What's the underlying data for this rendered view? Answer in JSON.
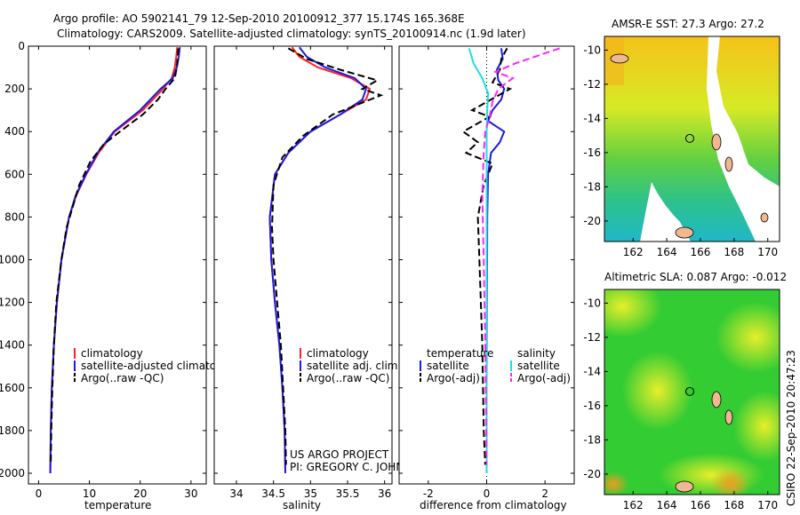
{
  "header": {
    "line1": "Argo profile: AO 5902141_79 12-Sep-2010 20100912_377 15.174S 165.368E",
    "line2": "Climatology: CARS2009. Satellite-adjusted climatology: synTS_20100914.nc (1.9d later)"
  },
  "colors": {
    "climatology": "#ff2020",
    "satellite": "#1a1ae6",
    "argo": "#000000",
    "salinity_satellite": "#18e0e0",
    "salinity_argo": "#ff22ff",
    "map_green": "#33cc33",
    "map_yellow": "#ddee22",
    "map_orange": "#f5b020",
    "map_cyan": "#20c8c8",
    "land": "#f0b890"
  },
  "credit": {
    "line1": "US ARGO PROJECT",
    "line2": "PI: GREGORY C. JOHNSON"
  },
  "footer": {
    "csiro_stamp": "CSIRO 22-Sep-2010 20:47:23"
  },
  "chart_data": [
    {
      "type": "line",
      "panel": "temperature",
      "xlabel": "temperature",
      "ylabel": "",
      "xlim": [
        -2,
        33
      ],
      "ylim": [
        2050,
        0
      ],
      "y_reversed": true,
      "xticks": [
        "0",
        "10",
        "20",
        "30"
      ],
      "xtick_values": [
        0,
        10,
        20,
        30
      ],
      "yticks": [
        "0",
        "200",
        "400",
        "600",
        "800",
        "1000",
        "1200",
        "1400",
        "1600",
        "1800",
        "2000"
      ],
      "ytick_values": [
        0,
        200,
        400,
        600,
        800,
        1000,
        1200,
        1400,
        1600,
        1800,
        2000
      ],
      "legend": [
        "climatology",
        "satellite-adjusted climatology",
        "Argo(..raw -QC)"
      ],
      "legend_position": "lower-center",
      "series": [
        {
          "name": "climatology",
          "style": "solid",
          "x": [
            27.3,
            27.1,
            26.8,
            26.2,
            24.5,
            20.5,
            15.0,
            11.8,
            9.4,
            7.4,
            6.0,
            4.5,
            3.6,
            3.0,
            2.6,
            2.4,
            2.3
          ],
          "y": [
            5,
            50,
            100,
            150,
            200,
            300,
            400,
            500,
            600,
            700,
            800,
            1000,
            1200,
            1400,
            1600,
            1800,
            2000
          ]
        },
        {
          "name": "satellite-adjusted climatology",
          "style": "solid",
          "x": [
            27.8,
            27.6,
            27.2,
            26.4,
            24.0,
            20.0,
            14.8,
            11.6,
            9.3,
            7.3,
            6.0,
            4.5,
            3.6,
            3.0,
            2.6,
            2.4,
            2.3
          ],
          "y": [
            5,
            50,
            100,
            150,
            200,
            300,
            400,
            500,
            600,
            700,
            800,
            1000,
            1200,
            1400,
            1600,
            1800,
            2000
          ]
        },
        {
          "name": "Argo(..raw -QC)",
          "style": "dash",
          "x": [
            27.5,
            27.4,
            27.2,
            26.8,
            25.0,
            23.5,
            20.5,
            16.0,
            12.8,
            10.2,
            8.0,
            5.5,
            4.5,
            3.5,
            3.0,
            2.7,
            2.5,
            2.4
          ],
          "y": [
            10,
            50,
            100,
            150,
            200,
            250,
            320,
            400,
            460,
            540,
            650,
            850,
            1000,
            1200,
            1400,
            1600,
            1800,
            1960
          ]
        }
      ]
    },
    {
      "type": "line",
      "panel": "salinity",
      "xlabel": "salinity",
      "xlim": [
        33.7,
        36.1
      ],
      "ylim": [
        2050,
        0
      ],
      "y_reversed": true,
      "xticks": [
        "34",
        "34.5",
        "35",
        "35.5",
        "36"
      ],
      "xtick_values": [
        34,
        34.5,
        35,
        35.5,
        36
      ],
      "legend": [
        "climatology",
        "satellite adj. clim.",
        "Argo(..raw -QC)"
      ],
      "legend_position": "lower-center",
      "series": [
        {
          "name": "climatology",
          "style": "solid",
          "x": [
            34.75,
            34.85,
            35.1,
            35.55,
            35.8,
            35.75,
            35.4,
            35.0,
            34.7,
            34.52,
            34.45,
            34.47,
            34.52,
            34.58,
            34.62,
            34.65,
            34.66
          ],
          "y": [
            5,
            50,
            100,
            150,
            200,
            250,
            320,
            400,
            500,
            600,
            800,
            1000,
            1200,
            1400,
            1600,
            1800,
            2000
          ]
        },
        {
          "name": "satellite adj. clim.",
          "style": "solid",
          "x": [
            34.85,
            34.95,
            35.2,
            35.6,
            35.75,
            35.7,
            35.4,
            35.0,
            34.7,
            34.52,
            34.45,
            34.47,
            34.52,
            34.58,
            34.62,
            34.65,
            34.66
          ],
          "y": [
            5,
            50,
            100,
            150,
            200,
            250,
            320,
            400,
            500,
            600,
            800,
            1000,
            1200,
            1400,
            1600,
            1800,
            2000
          ]
        },
        {
          "name": "Argo(..raw -QC)",
          "style": "dash",
          "x": [
            34.7,
            34.95,
            35.4,
            35.9,
            35.7,
            35.95,
            35.3,
            34.9,
            34.62,
            34.5,
            34.48,
            34.5,
            34.55,
            34.6,
            34.63,
            34.66,
            34.67
          ],
          "y": [
            10,
            60,
            110,
            160,
            200,
            230,
            320,
            420,
            520,
            650,
            850,
            1000,
            1200,
            1400,
            1600,
            1800,
            1960
          ]
        }
      ]
    },
    {
      "type": "line",
      "panel": "difference",
      "xlabel": "difference from climatology",
      "xlim": [
        -3,
        3
      ],
      "ylim": [
        2050,
        0
      ],
      "y_reversed": true,
      "xticks": [
        "-2",
        "0",
        "2"
      ],
      "xtick_values": [
        -2,
        0,
        2
      ],
      "legend_temperature": {
        "title": "temperature",
        "items": [
          "satellite",
          "Argo(-adj)"
        ]
      },
      "legend_salinity": {
        "title": "salinity",
        "items": [
          "satellite",
          "Argo(-adj)"
        ]
      },
      "series": [
        {
          "name": "temperature satellite",
          "style": "solid",
          "x": [
            0.5,
            0.55,
            0.35,
            0.4,
            0.6,
            0.5,
            0.2,
            0.05,
            0.6,
            0.45,
            0.15,
            0.05,
            0.02,
            0.01,
            0.0,
            0.0,
            0.0
          ],
          "y": [
            10,
            60,
            110,
            160,
            200,
            250,
            300,
            350,
            400,
            450,
            500,
            600,
            800,
            1200,
            1600,
            1800,
            2000
          ]
        },
        {
          "name": "temperature Argo(-adj)",
          "style": "dash",
          "x": [
            0.7,
            0.5,
            0.45,
            0.2,
            0.8,
            -0.5,
            0.1,
            -0.8,
            -0.3,
            -0.7,
            0.2,
            -0.1,
            -0.3,
            -0.25,
            -0.15,
            -0.1,
            -0.05
          ],
          "y": [
            10,
            60,
            110,
            170,
            200,
            300,
            330,
            400,
            450,
            500,
            550,
            650,
            800,
            1000,
            1400,
            1800,
            1960
          ]
        },
        {
          "name": "salinity satellite",
          "style": "solid",
          "x": [
            -0.6,
            -0.45,
            -0.15,
            0.05,
            0.02,
            0.0,
            0.0,
            0.0,
            0.0
          ],
          "y": [
            10,
            80,
            150,
            220,
            300,
            400,
            800,
            1400,
            2000
          ]
        },
        {
          "name": "salinity Argo(-adj)",
          "style": "dash",
          "x": [
            2.5,
            1.0,
            0.3,
            0.9,
            0.4,
            0.2,
            0.1,
            -0.05,
            -0.1,
            -0.15,
            -0.1,
            -0.05,
            0.0
          ],
          "y": [
            10,
            80,
            120,
            150,
            200,
            260,
            330,
            400,
            500,
            700,
            1000,
            1400,
            1960
          ]
        }
      ]
    },
    {
      "type": "heatmap",
      "panel": "sst_map",
      "title": "AMSR-E SST: 27.3  Argo: 27.2",
      "xlim": [
        160.3,
        170.7
      ],
      "ylim": [
        -21.2,
        -9.2
      ],
      "xticks": [
        "162",
        "164",
        "166",
        "168",
        "170"
      ],
      "xtick_values": [
        162,
        164,
        166,
        168,
        170
      ],
      "yticks": [
        "-10",
        "-12",
        "-14",
        "-16",
        "-18",
        "-20"
      ],
      "ytick_values": [
        -10,
        -12,
        -14,
        -16,
        -18,
        -20
      ],
      "float_position": [
        165.37,
        -15.17
      ]
    },
    {
      "type": "heatmap",
      "panel": "sla_map",
      "title": "Altimetric SLA: 0.087  Argo: -0.012",
      "xlim": [
        160.3,
        170.7
      ],
      "ylim": [
        -21.2,
        -9.2
      ],
      "xticks": [
        "162",
        "164",
        "166",
        "168",
        "170"
      ],
      "xtick_values": [
        162,
        164,
        166,
        168,
        170
      ],
      "yticks": [
        "-10",
        "-12",
        "-14",
        "-16",
        "-18",
        "-20"
      ],
      "ytick_values": [
        -10,
        -12,
        -14,
        -16,
        -18,
        -20
      ],
      "float_position": [
        165.37,
        -15.17
      ]
    }
  ]
}
